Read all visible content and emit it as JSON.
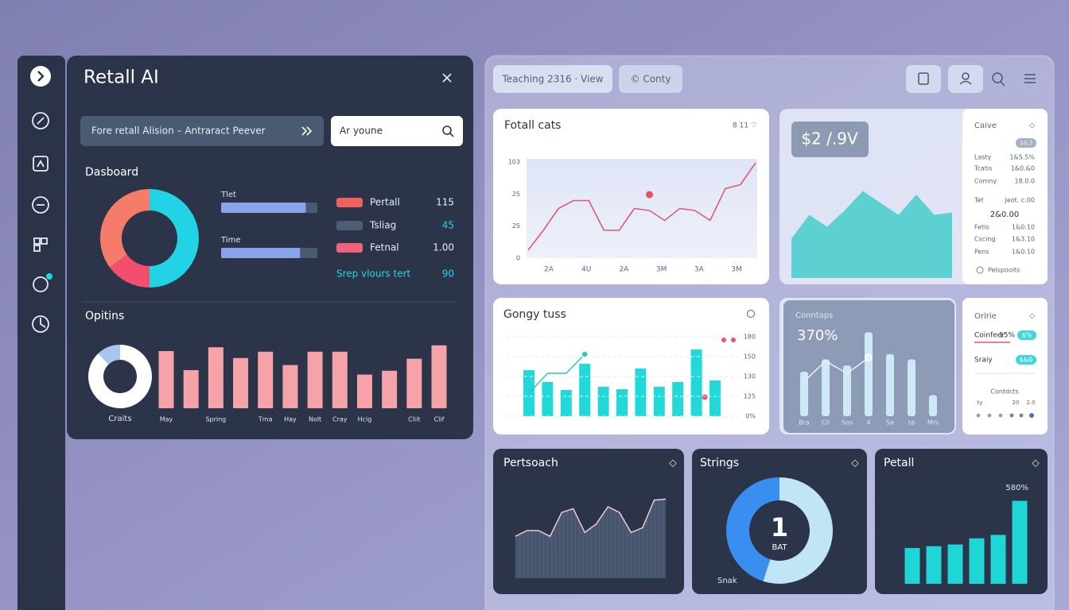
{
  "left_panel": {
    "title": "Retall AI",
    "search_primary": "Fore retall Alision – Antraract Peever",
    "search_secondary": "Ar youne",
    "dashboard": {
      "heading": "Dasboard",
      "donut": {
        "type": "donut",
        "values": [
          50,
          15,
          35
        ],
        "colors": [
          "#22d3e6",
          "#f24f6e",
          "#f47c68"
        ]
      },
      "progress": [
        {
          "label": "Tlet",
          "value": 88,
          "color": "#8aa4ea"
        },
        {
          "label": "Time",
          "value": 82,
          "color": "#8aa4ea"
        }
      ],
      "legend": [
        {
          "name": "Pertall",
          "value": "115",
          "color": "#f2625a"
        },
        {
          "name": "Tsliag",
          "value": "45",
          "color": "#4d5d75"
        },
        {
          "name": "Fetnal",
          "value": "1.00",
          "color": "#f2627a"
        },
        {
          "name": "Srep vlours tert",
          "value": "90"
        }
      ]
    },
    "options": {
      "heading": "Opitins",
      "donut": {
        "type": "donut",
        "label": "Craits",
        "values": [
          88,
          12
        ],
        "colors": [
          "#ffffff",
          "#a9c7ec"
        ]
      },
      "bars": {
        "type": "bar",
        "color": "#f5a3a8",
        "ylim": [
          0,
          100
        ],
        "categories": [
          "May",
          null,
          "Spring",
          null,
          "Tma",
          "Hay",
          "Nolt",
          "Cray",
          "Hcig",
          null,
          "Cliit",
          "Clif"
        ],
        "values": [
          90,
          60,
          96,
          79,
          89,
          68,
          89,
          89,
          53,
          59,
          78,
          99
        ]
      }
    }
  },
  "workspace": {
    "tabs": [
      "Teaching 2316 · View",
      "© Conty"
    ],
    "totals": {
      "title": "Fotall cats",
      "corner": "8 11 ♡",
      "chart": {
        "type": "line",
        "color": "#e05a78",
        "ylim": [
          0,
          100
        ],
        "y_labels": [
          "103",
          "25",
          "25",
          "0"
        ],
        "x_labels": [
          "2A",
          "4U",
          "2A",
          "3M",
          "3A",
          "3M"
        ],
        "values": [
          8,
          28,
          50,
          58,
          58,
          28,
          28,
          50,
          48,
          38,
          50,
          48,
          38,
          70,
          74,
          96
        ],
        "dot_values": [
          null,
          null,
          null,
          null,
          null,
          null,
          null,
          null,
          64,
          null,
          null,
          null,
          null,
          null,
          null,
          null
        ],
        "dot_color": "#ee4d62"
      }
    },
    "revenue": {
      "badge": "$2 /.9V",
      "chart": {
        "type": "area",
        "color": "#5dd0d2",
        "ylim": [
          0,
          100
        ],
        "values": [
          33,
          53,
          43,
          57,
          73,
          63,
          53,
          70,
          53,
          55
        ]
      }
    },
    "summary": {
      "title": "Caive",
      "corner": "◇",
      "badge": "$&3",
      "rows": [
        [
          "Lasty",
          "1&5.5%"
        ],
        [
          "Tcatis",
          "1&0.&0"
        ],
        [
          "Comny",
          "18.0.0"
        ],
        [
          "Tet",
          "Jeot. c.00"
        ]
      ],
      "total": "2&0.00",
      "rows2": [
        [
          "Fetis",
          "1&0.10"
        ],
        [
          "Cscing",
          "1&3.10"
        ],
        [
          "Pens",
          "1&0.10"
        ]
      ],
      "footer": "Pelspooits"
    },
    "gongy": {
      "title": "Gongy tuss",
      "chart": {
        "type": "bar",
        "color": "#22d9da",
        "ylim": [
          0,
          100
        ],
        "y_labels": [
          "180",
          "150",
          "130",
          "125",
          "0%"
        ],
        "values": [
          58,
          43,
          33,
          66,
          37,
          34,
          60,
          37,
          43,
          84,
          45
        ],
        "line_values": [
          29,
          54,
          54,
          78
        ],
        "line_color": "#2ac3cf"
      }
    },
    "conntaps": {
      "title": "Conntaps",
      "value": "370%",
      "chart": {
        "type": "bar",
        "color": "#cfe8f6",
        "ylim": [
          0,
          100
        ],
        "categories": [
          "Bra",
          "Cil",
          "Sos",
          "4",
          "Sa",
          "ta",
          "Mrs"
        ],
        "values": [
          51,
          65,
          58,
          96,
          71,
          65,
          24
        ],
        "line_values": [
          40,
          63,
          49,
          67
        ],
        "line_color": "#e8f1fa"
      }
    },
    "online": {
      "title": "Orlrie",
      "corner": "◇",
      "rows": [
        {
          "label": "Coinfeer",
          "value": "15%",
          "badge": "$%"
        },
        {
          "label": "Sraiy",
          "badge": "$&0"
        }
      ],
      "footer_title": "Contdcts",
      "footer_values": [
        "ty",
        "20",
        "2.0"
      ]
    },
    "pertsoach": {
      "title": "Pertsoach",
      "corner": "◇",
      "chart": {
        "type": "area",
        "color": "#4c5a74",
        "line_color": "#f1c9d6",
        "ylim": [
          0,
          100
        ],
        "values": [
          44,
          50,
          50,
          44,
          69,
          73,
          48,
          57,
          75,
          69,
          48,
          53,
          82,
          83
        ]
      }
    },
    "strings": {
      "title": "Strings",
      "corner": "◇",
      "center": "1",
      "center_label": "BAT",
      "footnote": "Snak",
      "chart": {
        "type": "donut",
        "values": [
          55,
          45
        ],
        "colors": [
          "#bfe5f6",
          "#3a8eef"
        ]
      }
    },
    "petall": {
      "title": "Petall",
      "corner": "◇",
      "value": "580%",
      "chart": {
        "type": "bar",
        "color": "#1ed6d6",
        "ylim": [
          0,
          100
        ],
        "values": [
          41,
          43,
          45,
          52,
          56,
          95
        ]
      }
    }
  }
}
